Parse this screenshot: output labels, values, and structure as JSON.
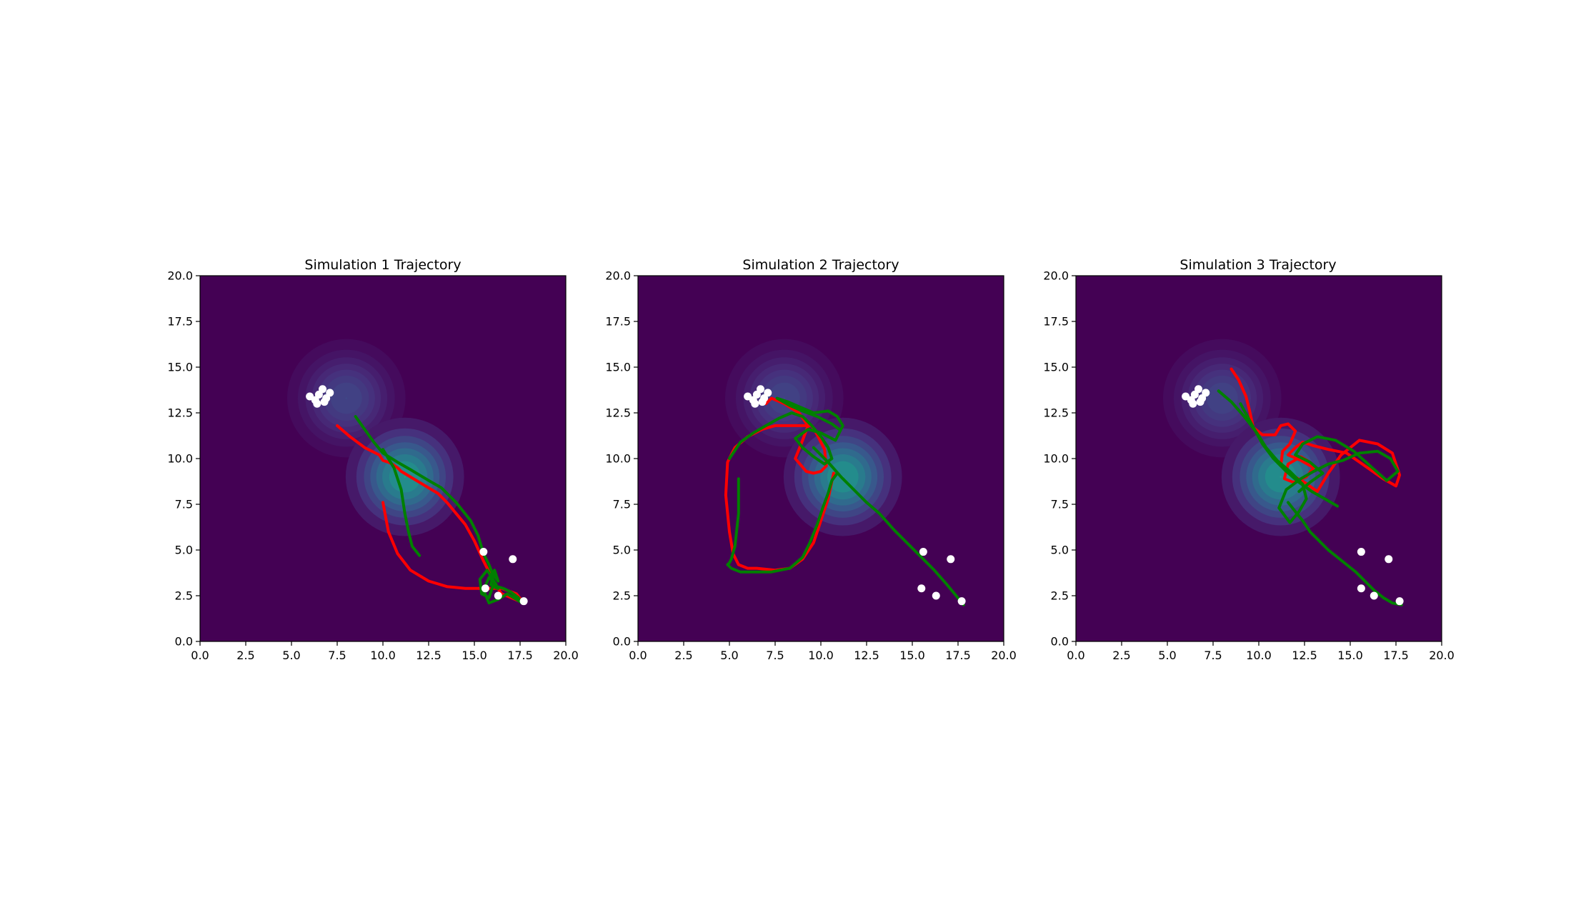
{
  "figure": {
    "background": "#ffffff"
  },
  "chart_data": [
    {
      "type": "line",
      "title": "Simulation 1 Trajectory",
      "xlim": [
        0,
        20
      ],
      "ylim": [
        0,
        20
      ],
      "xticks": [
        "0.0",
        "2.5",
        "5.0",
        "7.5",
        "10.0",
        "12.5",
        "15.0",
        "17.5",
        "20.0"
      ],
      "yticks": [
        "0.0",
        "2.5",
        "5.0",
        "7.5",
        "10.0",
        "12.5",
        "15.0",
        "17.5",
        "20.0"
      ],
      "grid": false,
      "background_field": {
        "base_color": "#440154",
        "blobs": [
          {
            "x": 8.0,
            "y": 13.3,
            "radius": 2.6,
            "peak": 0.22
          },
          {
            "x": 11.2,
            "y": 9.0,
            "radius": 2.6,
            "peak": 0.55
          }
        ]
      },
      "markers": {
        "color": "#ffffff",
        "points": [
          [
            6.0,
            13.4
          ],
          [
            6.3,
            13.2
          ],
          [
            6.5,
            13.5
          ],
          [
            6.7,
            13.8
          ],
          [
            6.9,
            13.3
          ],
          [
            7.1,
            13.6
          ],
          [
            6.4,
            13.0
          ],
          [
            6.8,
            13.1
          ],
          [
            15.5,
            4.9
          ],
          [
            17.1,
            4.5
          ],
          [
            15.6,
            2.9
          ],
          [
            16.3,
            2.5
          ],
          [
            17.7,
            2.2
          ]
        ]
      },
      "series": [
        {
          "color": "#ff0000",
          "x": [
            7.5,
            8.2,
            9.0,
            9.8,
            10.0,
            10.3,
            10.5,
            10.8,
            11.0,
            11.5,
            12.0,
            12.5,
            13.0,
            13.5,
            14.0,
            14.5,
            15.0,
            15.5,
            15.8,
            16.2,
            16.5,
            17.0,
            17.7,
            17.3,
            16.5,
            15.5,
            14.5,
            13.5,
            12.5,
            11.5,
            10.8,
            10.3,
            10.0
          ],
          "y": [
            11.8,
            11.2,
            10.6,
            10.2,
            9.9,
            9.8,
            9.7,
            9.5,
            9.3,
            9.0,
            8.7,
            8.4,
            8.1,
            7.6,
            7.0,
            6.4,
            5.5,
            4.4,
            3.8,
            3.0,
            2.6,
            2.4,
            2.1,
            2.6,
            2.9,
            2.9,
            2.9,
            3.0,
            3.3,
            3.9,
            4.8,
            6.0,
            7.6
          ]
        },
        {
          "color": "#008000",
          "x": [
            8.5,
            9.0,
            9.5,
            10.0,
            10.8,
            11.5,
            12.5,
            13.2,
            14.0,
            14.8,
            15.2,
            15.5,
            15.8,
            16.0,
            16.3,
            16.1,
            15.9,
            16.6,
            17.0,
            17.4,
            17.6,
            17.3,
            16.8,
            16.3,
            15.8,
            15.5,
            15.8,
            16.2,
            15.7,
            15.3,
            15.4,
            15.8,
            16.0,
            16.3
          ],
          "y": [
            12.3,
            11.6,
            10.9,
            10.3,
            9.8,
            9.4,
            8.8,
            8.4,
            7.6,
            6.6,
            5.8,
            4.8,
            4.2,
            3.7,
            3.3,
            3.9,
            3.1,
            2.9,
            2.7,
            2.4,
            2.1,
            2.3,
            2.6,
            2.3,
            2.1,
            2.8,
            3.5,
            3.1,
            3.9,
            3.4,
            2.6,
            2.4,
            3.0,
            2.9
          ]
        },
        {
          "color": "#008000",
          "x": [
            10.0,
            10.6,
            11.0,
            11.2,
            11.4,
            11.6,
            12.0
          ],
          "y": [
            10.5,
            9.5,
            8.3,
            7.0,
            6.0,
            5.2,
            4.7
          ]
        }
      ]
    },
    {
      "type": "line",
      "title": "Simulation 2 Trajectory",
      "xlim": [
        0,
        20
      ],
      "ylim": [
        0,
        20
      ],
      "xticks": [
        "0.0",
        "2.5",
        "5.0",
        "7.5",
        "10.0",
        "12.5",
        "15.0",
        "17.5",
        "20.0"
      ],
      "yticks": [
        "0.0",
        "2.5",
        "5.0",
        "7.5",
        "10.0",
        "12.5",
        "15.0",
        "17.5",
        "20.0"
      ],
      "grid": false,
      "background_field": {
        "base_color": "#440154",
        "blobs": [
          {
            "x": 8.0,
            "y": 13.3,
            "radius": 2.6,
            "peak": 0.22
          },
          {
            "x": 11.2,
            "y": 9.0,
            "radius": 2.6,
            "peak": 0.55
          }
        ]
      },
      "markers": {
        "color": "#ffffff",
        "points": [
          [
            6.0,
            13.4
          ],
          [
            6.3,
            13.2
          ],
          [
            6.5,
            13.5
          ],
          [
            6.7,
            13.8
          ],
          [
            6.9,
            13.3
          ],
          [
            7.1,
            13.6
          ],
          [
            6.4,
            13.0
          ],
          [
            6.8,
            13.1
          ],
          [
            15.6,
            4.9
          ],
          [
            17.1,
            4.5
          ],
          [
            15.5,
            2.9
          ],
          [
            16.3,
            2.5
          ],
          [
            17.7,
            2.2
          ]
        ]
      },
      "series": [
        {
          "color": "#ff0000",
          "x": [
            7.0,
            7.3,
            8.0,
            8.8,
            9.3,
            9.0,
            8.6,
            9.2,
            9.6,
            10.0,
            10.3,
            10.2,
            9.8,
            9.5,
            9.0,
            8.2,
            7.5,
            6.8,
            6.0,
            5.3,
            4.9,
            4.8,
            5.0,
            5.2,
            5.5,
            6.0,
            6.5,
            7.5,
            8.3,
            9.0,
            9.6,
            10.0,
            10.4,
            10.7
          ],
          "y": [
            13.0,
            13.3,
            13.0,
            12.5,
            11.8,
            11.0,
            10.0,
            9.3,
            9.2,
            9.3,
            9.6,
            10.5,
            11.3,
            11.8,
            11.8,
            11.8,
            11.8,
            11.6,
            11.2,
            10.6,
            9.8,
            8.0,
            6.0,
            4.8,
            4.2,
            4.0,
            4.0,
            3.9,
            4.0,
            4.5,
            5.4,
            6.6,
            7.8,
            9.2
          ]
        },
        {
          "color": "#008000",
          "x": [
            5.5,
            5.5,
            5.3,
            5.1,
            5.0,
            4.9,
            5.1,
            5.6,
            6.3,
            7.3,
            8.3,
            9.0,
            9.4,
            9.8,
            10.1,
            10.4,
            10.6,
            10.9
          ],
          "y": [
            8.9,
            7.0,
            5.2,
            4.5,
            4.3,
            4.2,
            4.0,
            3.8,
            3.8,
            3.8,
            4.0,
            4.6,
            5.4,
            6.4,
            7.3,
            8.1,
            8.8,
            9.2
          ]
        },
        {
          "color": "#008000",
          "x": [
            5.0,
            5.6,
            6.3,
            7.0,
            7.7,
            8.4,
            9.0,
            9.5,
            10.0,
            10.4,
            10.6,
            10.2,
            9.6,
            9.0,
            8.6,
            9.3,
            10.0,
            10.8,
            11.2,
            10.9,
            10.4,
            9.6,
            8.9,
            8.2,
            7.6,
            8.3,
            9.0,
            9.8,
            10.6,
            11.0
          ],
          "y": [
            10.0,
            10.9,
            11.4,
            11.8,
            12.2,
            12.5,
            12.3,
            11.8,
            11.2,
            10.6,
            10.0,
            9.7,
            10.1,
            10.6,
            11.1,
            11.6,
            11.4,
            11.0,
            11.8,
            12.3,
            12.6,
            12.5,
            12.8,
            13.1,
            13.3,
            12.9,
            12.6,
            12.3,
            11.9,
            11.6
          ]
        },
        {
          "color": "#008000",
          "x": [
            9.6,
            10.4,
            11.1,
            11.8,
            12.5,
            13.2,
            14.0,
            14.8,
            15.5,
            16.2,
            16.9,
            17.4,
            17.8
          ],
          "y": [
            10.6,
            9.8,
            9.0,
            8.3,
            7.6,
            7.0,
            6.1,
            5.3,
            4.6,
            3.9,
            3.1,
            2.5,
            2.0
          ]
        }
      ]
    },
    {
      "type": "line",
      "title": "Simulation 3 Trajectory",
      "xlim": [
        0,
        20
      ],
      "ylim": [
        0,
        20
      ],
      "xticks": [
        "0.0",
        "2.5",
        "5.0",
        "7.5",
        "10.0",
        "12.5",
        "15.0",
        "17.5",
        "20.0"
      ],
      "yticks": [
        "0.0",
        "2.5",
        "5.0",
        "7.5",
        "10.0",
        "12.5",
        "15.0",
        "17.5",
        "20.0"
      ],
      "grid": false,
      "background_field": {
        "base_color": "#440154",
        "blobs": [
          {
            "x": 8.0,
            "y": 13.3,
            "radius": 2.6,
            "peak": 0.22
          },
          {
            "x": 11.2,
            "y": 9.0,
            "radius": 2.6,
            "peak": 0.55
          }
        ]
      },
      "markers": {
        "color": "#ffffff",
        "points": [
          [
            6.0,
            13.4
          ],
          [
            6.3,
            13.2
          ],
          [
            6.5,
            13.5
          ],
          [
            6.7,
            13.8
          ],
          [
            6.9,
            13.3
          ],
          [
            7.1,
            13.6
          ],
          [
            6.4,
            13.0
          ],
          [
            6.8,
            13.1
          ],
          [
            15.6,
            4.9
          ],
          [
            17.1,
            4.5
          ],
          [
            15.6,
            2.9
          ],
          [
            16.3,
            2.5
          ],
          [
            17.7,
            2.2
          ]
        ]
      },
      "series": [
        {
          "color": "#ff0000",
          "x": [
            8.5,
            8.9,
            9.3,
            9.5,
            9.7,
            10.2,
            10.9,
            11.2,
            11.6,
            12.0,
            11.7,
            11.3,
            11.2,
            11.8,
            12.5,
            13.2,
            13.8,
            14.5,
            15.5,
            16.5,
            17.3,
            17.7,
            17.5,
            16.8,
            15.8,
            14.8,
            13.8,
            13.0,
            12.4,
            12.0,
            11.6,
            12.3,
            13.0,
            12.6,
            11.9,
            11.4,
            11.6,
            12.3,
            12.8
          ],
          "y": [
            14.9,
            14.3,
            13.4,
            12.6,
            11.7,
            11.3,
            11.3,
            11.8,
            11.9,
            11.5,
            10.8,
            10.4,
            9.6,
            9.1,
            8.7,
            8.2,
            9.2,
            10.2,
            11.0,
            10.8,
            10.3,
            9.1,
            8.5,
            8.9,
            9.6,
            10.3,
            10.5,
            10.7,
            10.9,
            10.6,
            10.2,
            9.9,
            9.5,
            9.0,
            8.7,
            8.9,
            9.7,
            10.1,
            9.8
          ]
        },
        {
          "color": "#008000",
          "x": [
            7.8,
            8.5,
            9.2,
            9.9,
            10.4,
            11.0,
            11.7,
            12.4,
            12.6,
            12.2,
            11.7,
            11.1,
            11.5,
            12.3,
            13.0,
            13.8,
            14.6,
            15.5,
            16.5,
            17.2,
            17.6,
            17.0,
            16.2,
            15.2,
            14.2,
            13.2,
            12.4,
            12.0,
            12.8,
            13.5,
            12.8,
            12.2
          ],
          "y": [
            13.7,
            13.1,
            12.3,
            11.4,
            10.6,
            9.9,
            9.3,
            8.6,
            7.8,
            7.1,
            6.5,
            7.3,
            8.3,
            8.9,
            9.3,
            9.7,
            9.9,
            10.3,
            10.4,
            10.0,
            9.3,
            8.8,
            9.5,
            10.4,
            11.0,
            11.2,
            10.8,
            10.2,
            9.8,
            9.2,
            8.7,
            8.2
          ]
        },
        {
          "color": "#008000",
          "x": [
            11.6,
            12.0,
            12.4,
            12.8,
            13.3,
            13.8,
            14.3,
            14.8,
            15.3,
            15.8,
            16.3,
            16.8,
            17.3,
            17.8
          ],
          "y": [
            7.6,
            7.1,
            6.6,
            6.0,
            5.5,
            5.0,
            4.6,
            4.2,
            3.8,
            3.3,
            2.8,
            2.4,
            2.1,
            2.0
          ]
        },
        {
          "color": "#008000",
          "x": [
            9.0,
            9.6,
            10.2,
            10.8,
            11.5,
            12.2,
            12.9,
            13.6,
            14.3
          ],
          "y": [
            13.0,
            11.9,
            10.8,
            10.0,
            9.3,
            8.7,
            8.2,
            7.8,
            7.4
          ]
        }
      ]
    }
  ]
}
